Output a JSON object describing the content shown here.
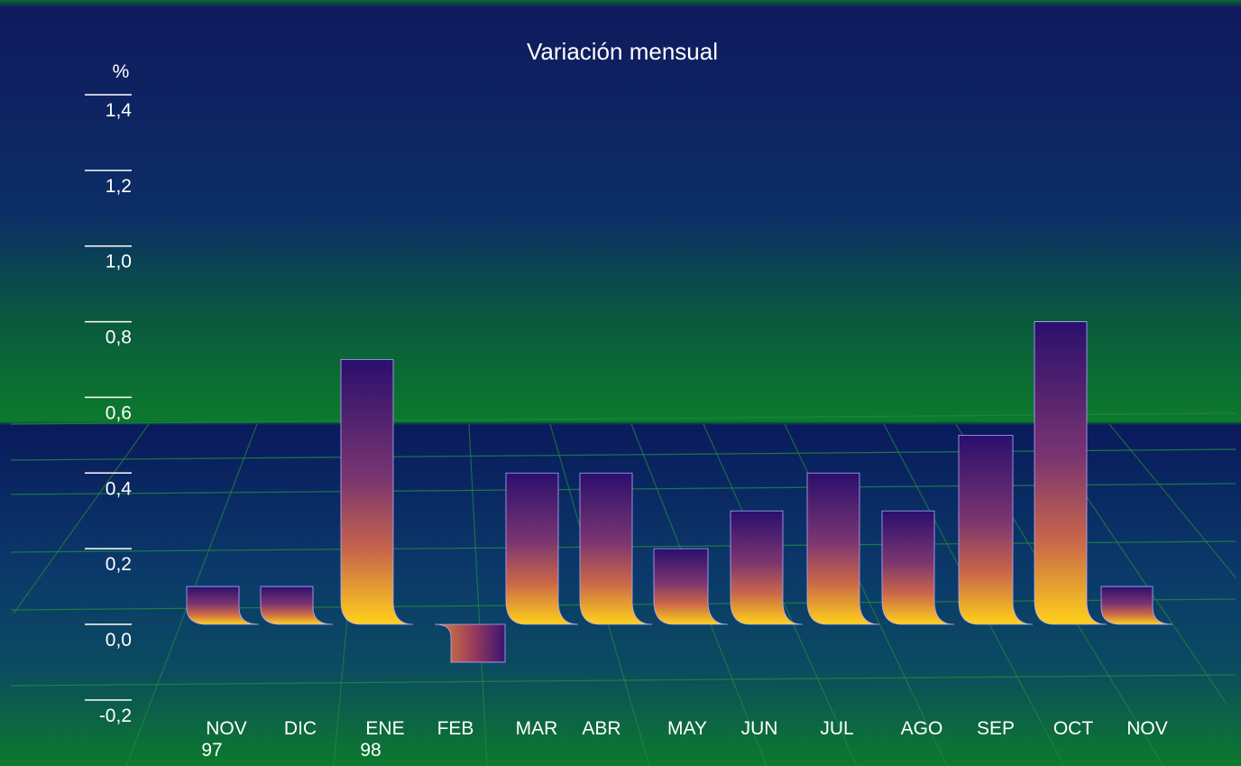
{
  "chart_data": {
    "type": "bar",
    "title": "Variación mensual",
    "ylabel": "%",
    "xlabel": "",
    "ylim": [
      -0.2,
      1.4
    ],
    "yticks": [
      1.4,
      1.2,
      1.0,
      0.8,
      0.6,
      0.4,
      0.2,
      0.0,
      -0.2
    ],
    "ytick_labels": [
      "1,4",
      "1,2",
      "1,0",
      "0,8",
      "0,6",
      "0,4",
      "0,2",
      "0,0",
      "-0,2"
    ],
    "categories": [
      {
        "label": "NOV",
        "sub": "97"
      },
      {
        "label": "DIC",
        "sub": ""
      },
      {
        "label": "ENE",
        "sub": "98"
      },
      {
        "label": "FEB",
        "sub": ""
      },
      {
        "label": "MAR",
        "sub": ""
      },
      {
        "label": "ABR",
        "sub": ""
      },
      {
        "label": "MAY",
        "sub": ""
      },
      {
        "label": "JUN",
        "sub": ""
      },
      {
        "label": "JUL",
        "sub": ""
      },
      {
        "label": "AGO",
        "sub": ""
      },
      {
        "label": "SEP",
        "sub": ""
      },
      {
        "label": "OCT",
        "sub": ""
      },
      {
        "label": "NOV",
        "sub": ""
      }
    ],
    "values": [
      0.1,
      0.1,
      0.7,
      -0.1,
      0.4,
      0.4,
      0.2,
      0.3,
      0.4,
      0.3,
      0.5,
      0.8,
      0.1
    ],
    "grid": true,
    "legend": "none"
  },
  "colors": {
    "background_top": "#0d1a5c",
    "background_mid": "#0a6a2e",
    "floor": "#0c2a66",
    "grid_line": "#1f8a3f",
    "bar_top": "#2a0f6e",
    "bar_mid": "#a3405a",
    "bar_bottom": "#ffd11a",
    "text": "#ffffff"
  }
}
